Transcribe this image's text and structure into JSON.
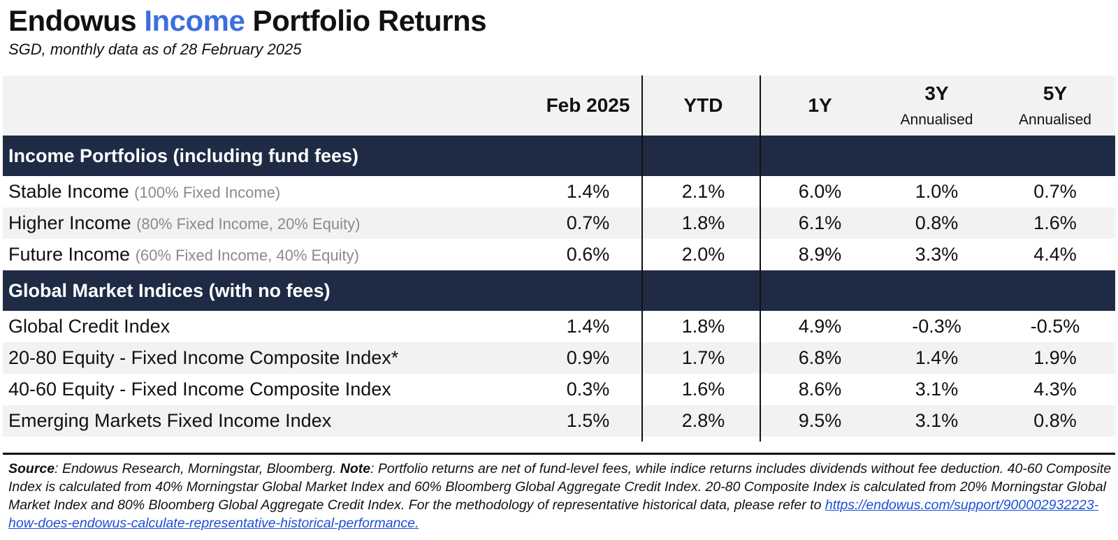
{
  "title": {
    "part1": "Endowus ",
    "accent": "Income",
    "part2": " Portfolio Returns"
  },
  "subtitle": "SGD, monthly data as of 28 February 2025",
  "colors": {
    "accent": "#3b6fe0",
    "section_bg": "#1f2b45",
    "alt_row_bg": "#f2f2f2",
    "note_text": "#8a8a8a",
    "link": "#1a4fd8"
  },
  "chart_data": {
    "type": "table",
    "columns": [
      {
        "label": "Feb 2025",
        "sub": ""
      },
      {
        "label": "YTD",
        "sub": ""
      },
      {
        "label": "1Y",
        "sub": ""
      },
      {
        "label": "3Y",
        "sub": "Annualised"
      },
      {
        "label": "5Y",
        "sub": "Annualised"
      }
    ],
    "sections": [
      {
        "heading": "Income Portfolios (including fund fees)",
        "rows": [
          {
            "name": "Stable Income",
            "note": "(100% Fixed Income)",
            "values": [
              "1.4%",
              "2.1%",
              "6.0%",
              "1.0%",
              "0.7%"
            ]
          },
          {
            "name": "Higher Income",
            "note": "(80% Fixed Income, 20% Equity)",
            "values": [
              "0.7%",
              "1.8%",
              "6.1%",
              "0.8%",
              "1.6%"
            ]
          },
          {
            "name": "Future Income",
            "note": "(60% Fixed Income, 40% Equity)",
            "values": [
              "0.6%",
              "2.0%",
              "8.9%",
              "3.3%",
              "4.4%"
            ]
          }
        ]
      },
      {
        "heading": "Global Market Indices (with no fees)",
        "rows": [
          {
            "name": "Global Credit Index",
            "note": "",
            "values": [
              "1.4%",
              "1.8%",
              "4.9%",
              "-0.3%",
              "-0.5%"
            ]
          },
          {
            "name": "20-80 Equity - Fixed Income Composite Index*",
            "note": "",
            "values": [
              "0.9%",
              "1.7%",
              "6.8%",
              "1.4%",
              "1.9%"
            ]
          },
          {
            "name": "40-60 Equity - Fixed Income Composite Index",
            "note": "",
            "values": [
              "0.3%",
              "1.6%",
              "8.6%",
              "3.1%",
              "4.3%"
            ]
          },
          {
            "name": "Emerging Markets Fixed Income Index",
            "note": "",
            "values": [
              "1.5%",
              "2.8%",
              "9.5%",
              "3.1%",
              "0.8%"
            ]
          }
        ]
      }
    ]
  },
  "footer": {
    "source_label": "Source",
    "source_text": ": Endowus Research, Morningstar, Bloomberg. ",
    "note_label": "Note",
    "note_text": ": Portfolio returns are net of fund-level fees, while indice returns includes dividends without fee deduction. 40-60 Composite Index is calculated from 40% Morningstar Global Market Index and 60% Bloomberg Global Aggregate Credit Index. 20-80 Composite Index is calculated from 20% Morningstar Global Market Index and 80% Bloomberg Global Aggregate Credit Index. For the methodology of representative historical data, please refer to ",
    "link": "https://endowus.com/support/900002932223-how-does-endowus-calculate-representative-historical-performance."
  }
}
